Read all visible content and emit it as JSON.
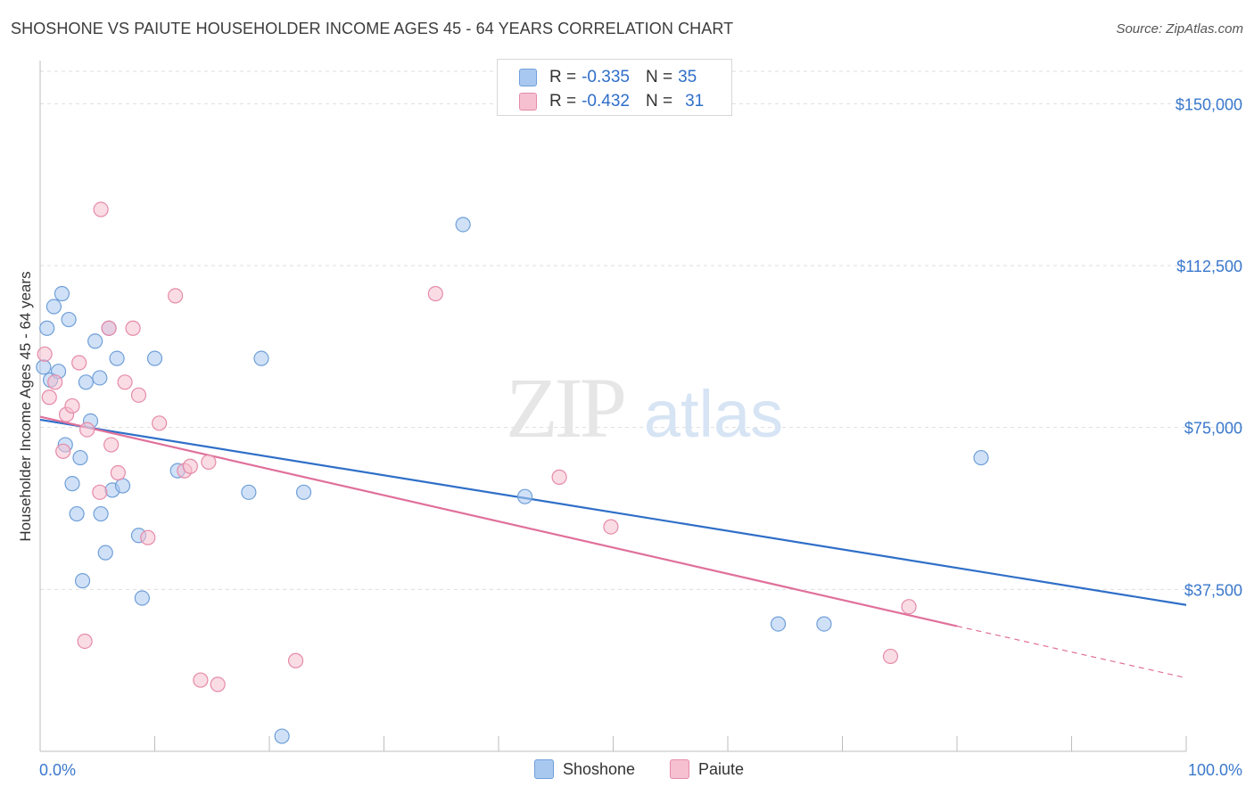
{
  "title": "SHOSHONE VS PAIUTE HOUSEHOLDER INCOME AGES 45 - 64 YEARS CORRELATION CHART",
  "source": "Source: ZipAtlas.com",
  "watermark": {
    "zip": "ZIP",
    "atlas": "atlas"
  },
  "legend_top": [
    {
      "r_label": "R =",
      "r_value": "-0.335",
      "n_label": "N =",
      "n_value": "35",
      "color": "#a9c8f0",
      "border": "#6f9fd8"
    },
    {
      "r_label": "R =",
      "r_value": "-0.432",
      "n_label": "N =",
      "n_value": "31",
      "color": "#f6c0d0",
      "border": "#e58aa8"
    }
  ],
  "chart_data": {
    "type": "scatter",
    "title": "SHOSHONE VS PAIUTE HOUSEHOLDER INCOME AGES 45 - 64 YEARS CORRELATION CHART",
    "xlabel": "",
    "ylabel": "Householder Income Ages 45 - 64 years",
    "xlim": [
      0,
      100
    ],
    "ylim": [
      0,
      157500
    ],
    "x_tick_labels": [
      "0.0%",
      "100.0%"
    ],
    "y_ticks": [
      37500,
      75000,
      112500,
      150000
    ],
    "y_tick_labels": [
      "$37,500",
      "$75,000",
      "$112,500",
      "$150,000"
    ],
    "grid": true,
    "legend_position": "bottom",
    "series": [
      {
        "name": "Shoshone",
        "color": "#a9c8f0",
        "stroke": "#6f9fd8",
        "line_color": "#2f6fc8",
        "trend": {
          "x": [
            0,
            100
          ],
          "y": [
            76800,
            33900
          ]
        },
        "points": [
          [
            0.3,
            89000
          ],
          [
            0.6,
            98000
          ],
          [
            0.9,
            86000
          ],
          [
            1.2,
            103000
          ],
          [
            1.6,
            88000
          ],
          [
            1.9,
            106000
          ],
          [
            2.2,
            71000
          ],
          [
            2.5,
            100000
          ],
          [
            2.8,
            62000
          ],
          [
            3.2,
            55000
          ],
          [
            3.5,
            68000
          ],
          [
            3.7,
            39500
          ],
          [
            4.0,
            85500
          ],
          [
            4.4,
            76500
          ],
          [
            4.8,
            95000
          ],
          [
            5.2,
            86500
          ],
          [
            5.3,
            55000
          ],
          [
            5.7,
            46000
          ],
          [
            6.0,
            98000
          ],
          [
            6.3,
            60500
          ],
          [
            6.7,
            91000
          ],
          [
            7.2,
            61500
          ],
          [
            8.6,
            50000
          ],
          [
            8.9,
            35500
          ],
          [
            10.0,
            91000
          ],
          [
            12.0,
            65000
          ],
          [
            18.2,
            60000
          ],
          [
            19.3,
            91000
          ],
          [
            21.1,
            3500
          ],
          [
            23.0,
            60000
          ],
          [
            36.9,
            122000
          ],
          [
            42.3,
            59000
          ],
          [
            64.4,
            29500
          ],
          [
            68.4,
            29500
          ],
          [
            82.1,
            68000
          ]
        ]
      },
      {
        "name": "Paiute",
        "color": "#f6c0d0",
        "stroke": "#e58aa8",
        "line_color": "#e0709a",
        "trend": {
          "x": [
            0,
            80
          ],
          "y": [
            77500,
            29000
          ]
        },
        "trend_dashed": {
          "x": [
            80,
            100
          ],
          "y": [
            29000,
            17000
          ]
        },
        "points": [
          [
            0.4,
            92000
          ],
          [
            0.8,
            82000
          ],
          [
            1.3,
            85500
          ],
          [
            2.0,
            69500
          ],
          [
            2.3,
            78000
          ],
          [
            2.8,
            80000
          ],
          [
            3.4,
            90000
          ],
          [
            3.9,
            25500
          ],
          [
            4.1,
            74500
          ],
          [
            5.2,
            60000
          ],
          [
            5.3,
            125500
          ],
          [
            6.0,
            98000
          ],
          [
            6.2,
            71000
          ],
          [
            6.8,
            64500
          ],
          [
            7.4,
            85500
          ],
          [
            8.1,
            98000
          ],
          [
            8.6,
            82500
          ],
          [
            9.4,
            49500
          ],
          [
            10.4,
            76000
          ],
          [
            11.8,
            105500
          ],
          [
            12.6,
            65000
          ],
          [
            13.1,
            66000
          ],
          [
            14.0,
            16500
          ],
          [
            14.7,
            67000
          ],
          [
            15.5,
            15500
          ],
          [
            22.3,
            21000
          ],
          [
            34.5,
            106000
          ],
          [
            45.3,
            63500
          ],
          [
            49.8,
            52000
          ],
          [
            74.2,
            22000
          ],
          [
            75.8,
            33500
          ]
        ]
      }
    ]
  },
  "legend_bottom": [
    {
      "label": "Shoshone",
      "color": "#a9c8f0",
      "border": "#6f9fd8"
    },
    {
      "label": "Paiute",
      "color": "#f6c0d0",
      "border": "#e58aa8"
    }
  ]
}
